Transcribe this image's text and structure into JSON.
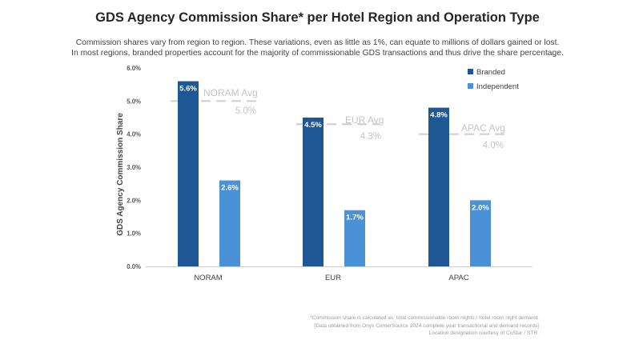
{
  "chart_data": {
    "type": "bar",
    "title": "GDS Agency Commission Share* per Hotel Region and Operation Type",
    "subtitle_lines": [
      "Commission shares vary from region to region. These variations, even as little as 1%, can equate to millions of dollars gained or lost.",
      "In most regions, branded properties account for the majority of commissionable GDS transactions and thus drive the share percentage."
    ],
    "ylabel": "GDS Agency Commission Share",
    "xlabel": "",
    "ylim": [
      0,
      6
    ],
    "yticks": [
      "0.0%",
      "1.0%",
      "2.0%",
      "3.0%",
      "4.0%",
      "5.0%",
      "6.0%"
    ],
    "categories": [
      "NORAM",
      "EUR",
      "APAC"
    ],
    "series": [
      {
        "name": "Branded",
        "color": "#1f5694",
        "values": [
          5.6,
          4.5,
          4.8
        ],
        "labels": [
          "5.6%",
          "4.5%",
          "4.8%"
        ]
      },
      {
        "name": "Independent",
        "color": "#4a91d8",
        "values": [
          2.6,
          1.7,
          2.0
        ],
        "labels": [
          "2.6%",
          "1.7%",
          "2.0%"
        ]
      }
    ],
    "averages": [
      {
        "category": "NORAM",
        "name": "NORAM Avg",
        "value": 5.0,
        "label": "5.0%"
      },
      {
        "category": "EUR",
        "name": "EUR Avg",
        "value": 4.3,
        "label": "4.3%"
      },
      {
        "category": "APAC",
        "name": "APAC Avg",
        "value": 4.0,
        "label": "4.0%"
      }
    ],
    "legend_position": "top-right",
    "grid": false
  },
  "colors": {
    "branded": "#1f5694",
    "independent": "#4a91d8",
    "avg_line": "#d0d0d0",
    "avg_text": "#c4c4c4",
    "axis": "#cfcfcf"
  },
  "footnote": {
    "lines": [
      "*Commission share is calculated as: total commissionable room nights / hotel room night demand.",
      "[Data obtained from Onyx CenterSource 2024 complete year transactional and demand records]",
      "Location designation courtesy of CoStar / STR."
    ]
  }
}
